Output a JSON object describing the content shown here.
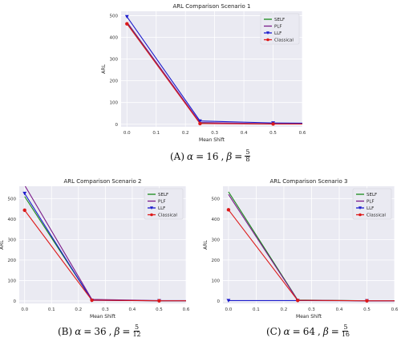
{
  "captions": [
    {
      "label": "(A)",
      "alpha_sym": "α",
      "alpha_val": "16",
      "beta_sym": "β",
      "beta_num": "5",
      "beta_den": "8"
    },
    {
      "label": "(B)",
      "alpha_sym": "α",
      "alpha_val": "36",
      "beta_sym": "β",
      "beta_num": "5",
      "beta_den": "12"
    },
    {
      "label": "(C)",
      "alpha_sym": "α",
      "alpha_val": "64",
      "beta_sym": "β",
      "beta_num": "5",
      "beta_den": "16"
    }
  ],
  "chart_data": [
    {
      "type": "line",
      "title": "ARL Comparison Scenario 1",
      "xlabel": "Mean Shift",
      "ylabel": "ARL",
      "x": [
        0.0,
        0.25,
        0.5,
        0.6
      ],
      "xlim": [
        -0.02,
        0.6
      ],
      "ylim": [
        -12,
        520
      ],
      "xticks": [
        "0.0",
        "0.1",
        "0.2",
        "0.3",
        "0.4",
        "0.5",
        "0.6"
      ],
      "yticks": [
        "0",
        "100",
        "200",
        "300",
        "400",
        "500"
      ],
      "grid": true,
      "legend": "top-right",
      "series": [
        {
          "name": "SELF",
          "values": [
            465,
            5,
            1,
            1
          ],
          "color": "#1a8a1a",
          "marker": "none"
        },
        {
          "name": "PLF",
          "values": [
            470,
            8,
            2,
            2
          ],
          "color": "#7a1a8a",
          "marker": "none"
        },
        {
          "name": "LLF",
          "values": [
            495,
            15,
            6,
            5
          ],
          "color": "#1a1acc",
          "marker": "triangle"
        },
        {
          "name": "Classical",
          "values": [
            462,
            3,
            1,
            1
          ],
          "color": "#dd1a1a",
          "marker": "circle"
        }
      ]
    },
    {
      "type": "line",
      "title": "ARL Comparison Scenario 2",
      "xlabel": "Mean Shift",
      "ylabel": "ARL",
      "x": [
        0.0,
        0.25,
        0.5,
        0.6
      ],
      "xlim": [
        -0.02,
        0.6
      ],
      "ylim": [
        -12,
        560
      ],
      "xticks": [
        "0.0",
        "0.1",
        "0.2",
        "0.3",
        "0.4",
        "0.5",
        "0.6"
      ],
      "yticks": [
        "0",
        "100",
        "200",
        "300",
        "400",
        "500"
      ],
      "grid": true,
      "legend": "top-right",
      "series": [
        {
          "name": "SELF",
          "values": [
            510,
            5,
            1,
            1
          ],
          "color": "#1a8a1a",
          "marker": "none"
        },
        {
          "name": "PLF",
          "values": [
            565,
            8,
            2,
            2
          ],
          "color": "#7a1a8a",
          "marker": "none"
        },
        {
          "name": "LLF",
          "values": [
            525,
            3,
            1,
            1
          ],
          "color": "#1a1acc",
          "marker": "triangle"
        },
        {
          "name": "Classical",
          "values": [
            443,
            4,
            1,
            1
          ],
          "color": "#dd1a1a",
          "marker": "circle"
        }
      ]
    },
    {
      "type": "line",
      "title": "ARL Comparison Scenario 3",
      "xlabel": "Mean Shift",
      "ylabel": "ARL",
      "x": [
        0.0,
        0.25,
        0.5,
        0.6
      ],
      "xlim": [
        -0.02,
        0.6
      ],
      "ylim": [
        -12,
        560
      ],
      "xticks": [
        "0.0",
        "0.1",
        "0.2",
        "0.3",
        "0.4",
        "0.5",
        "0.6"
      ],
      "yticks": [
        "0",
        "100",
        "200",
        "300",
        "400",
        "500"
      ],
      "grid": true,
      "legend": "top-right",
      "series": [
        {
          "name": "SELF",
          "values": [
            533,
            5,
            1,
            1
          ],
          "color": "#1a8a1a",
          "marker": "none"
        },
        {
          "name": "PLF",
          "values": [
            520,
            4,
            1,
            1
          ],
          "color": "#7a1a8a",
          "marker": "none"
        },
        {
          "name": "LLF",
          "values": [
            2,
            2,
            1,
            1
          ],
          "color": "#1a1acc",
          "marker": "triangle"
        },
        {
          "name": "Classical",
          "values": [
            445,
            3,
            1,
            1
          ],
          "color": "#dd1a1a",
          "marker": "circle"
        }
      ]
    }
  ]
}
